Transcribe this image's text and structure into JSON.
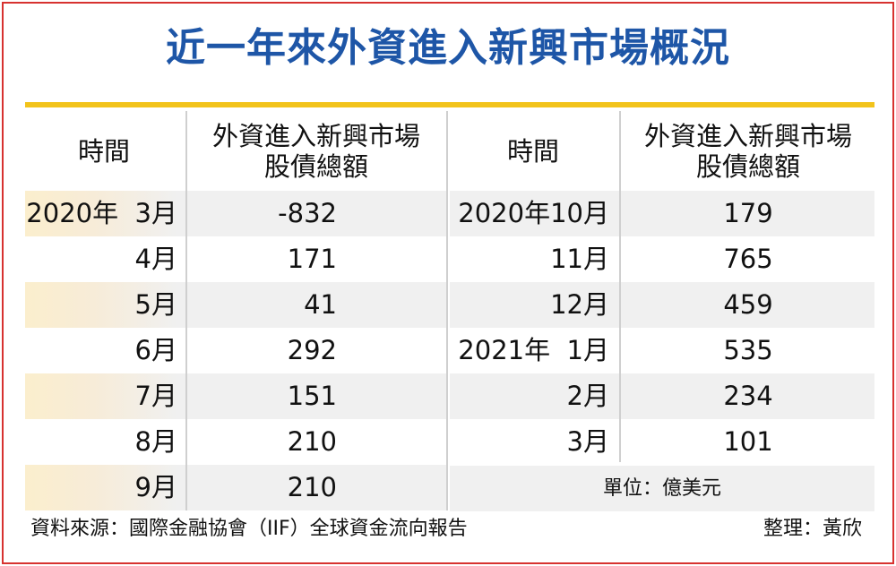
{
  "title": "近一年來外資進入新興市場概況",
  "table": {
    "left_header": {
      "time": "時間",
      "amount": "外資進入新興市場\n股債總額"
    },
    "right_header": {
      "time": "時間",
      "amount": "外資進入新興市場\n股債總額"
    },
    "left_rows": [
      {
        "time": "2020年  3月",
        "value": "-832"
      },
      {
        "time": "4月",
        "value": "171"
      },
      {
        "time": "5月",
        "value": "41"
      },
      {
        "time": "6月",
        "value": "292"
      },
      {
        "time": "7月",
        "value": "151"
      },
      {
        "time": "8月",
        "value": "210"
      },
      {
        "time": "9月",
        "value": "210"
      }
    ],
    "right_rows": [
      {
        "time": "2020年10月",
        "value": "179"
      },
      {
        "time": "11月",
        "value": "765"
      },
      {
        "time": "12月",
        "value": "459"
      },
      {
        "time": "2021年  1月",
        "value": "535"
      },
      {
        "time": "2月",
        "value": "234"
      },
      {
        "time": "3月",
        "value": "101"
      }
    ],
    "unit": "單位：億美元"
  },
  "footer": {
    "source": "資料來源：國際金融協會（IIF）全球資金流向報告",
    "credit": "整理：黃欣"
  },
  "colors": {
    "title": "#1e56a7",
    "rule": "#f2c31b",
    "border": "#d7322f",
    "row_shade": "#f0f0f0"
  }
}
